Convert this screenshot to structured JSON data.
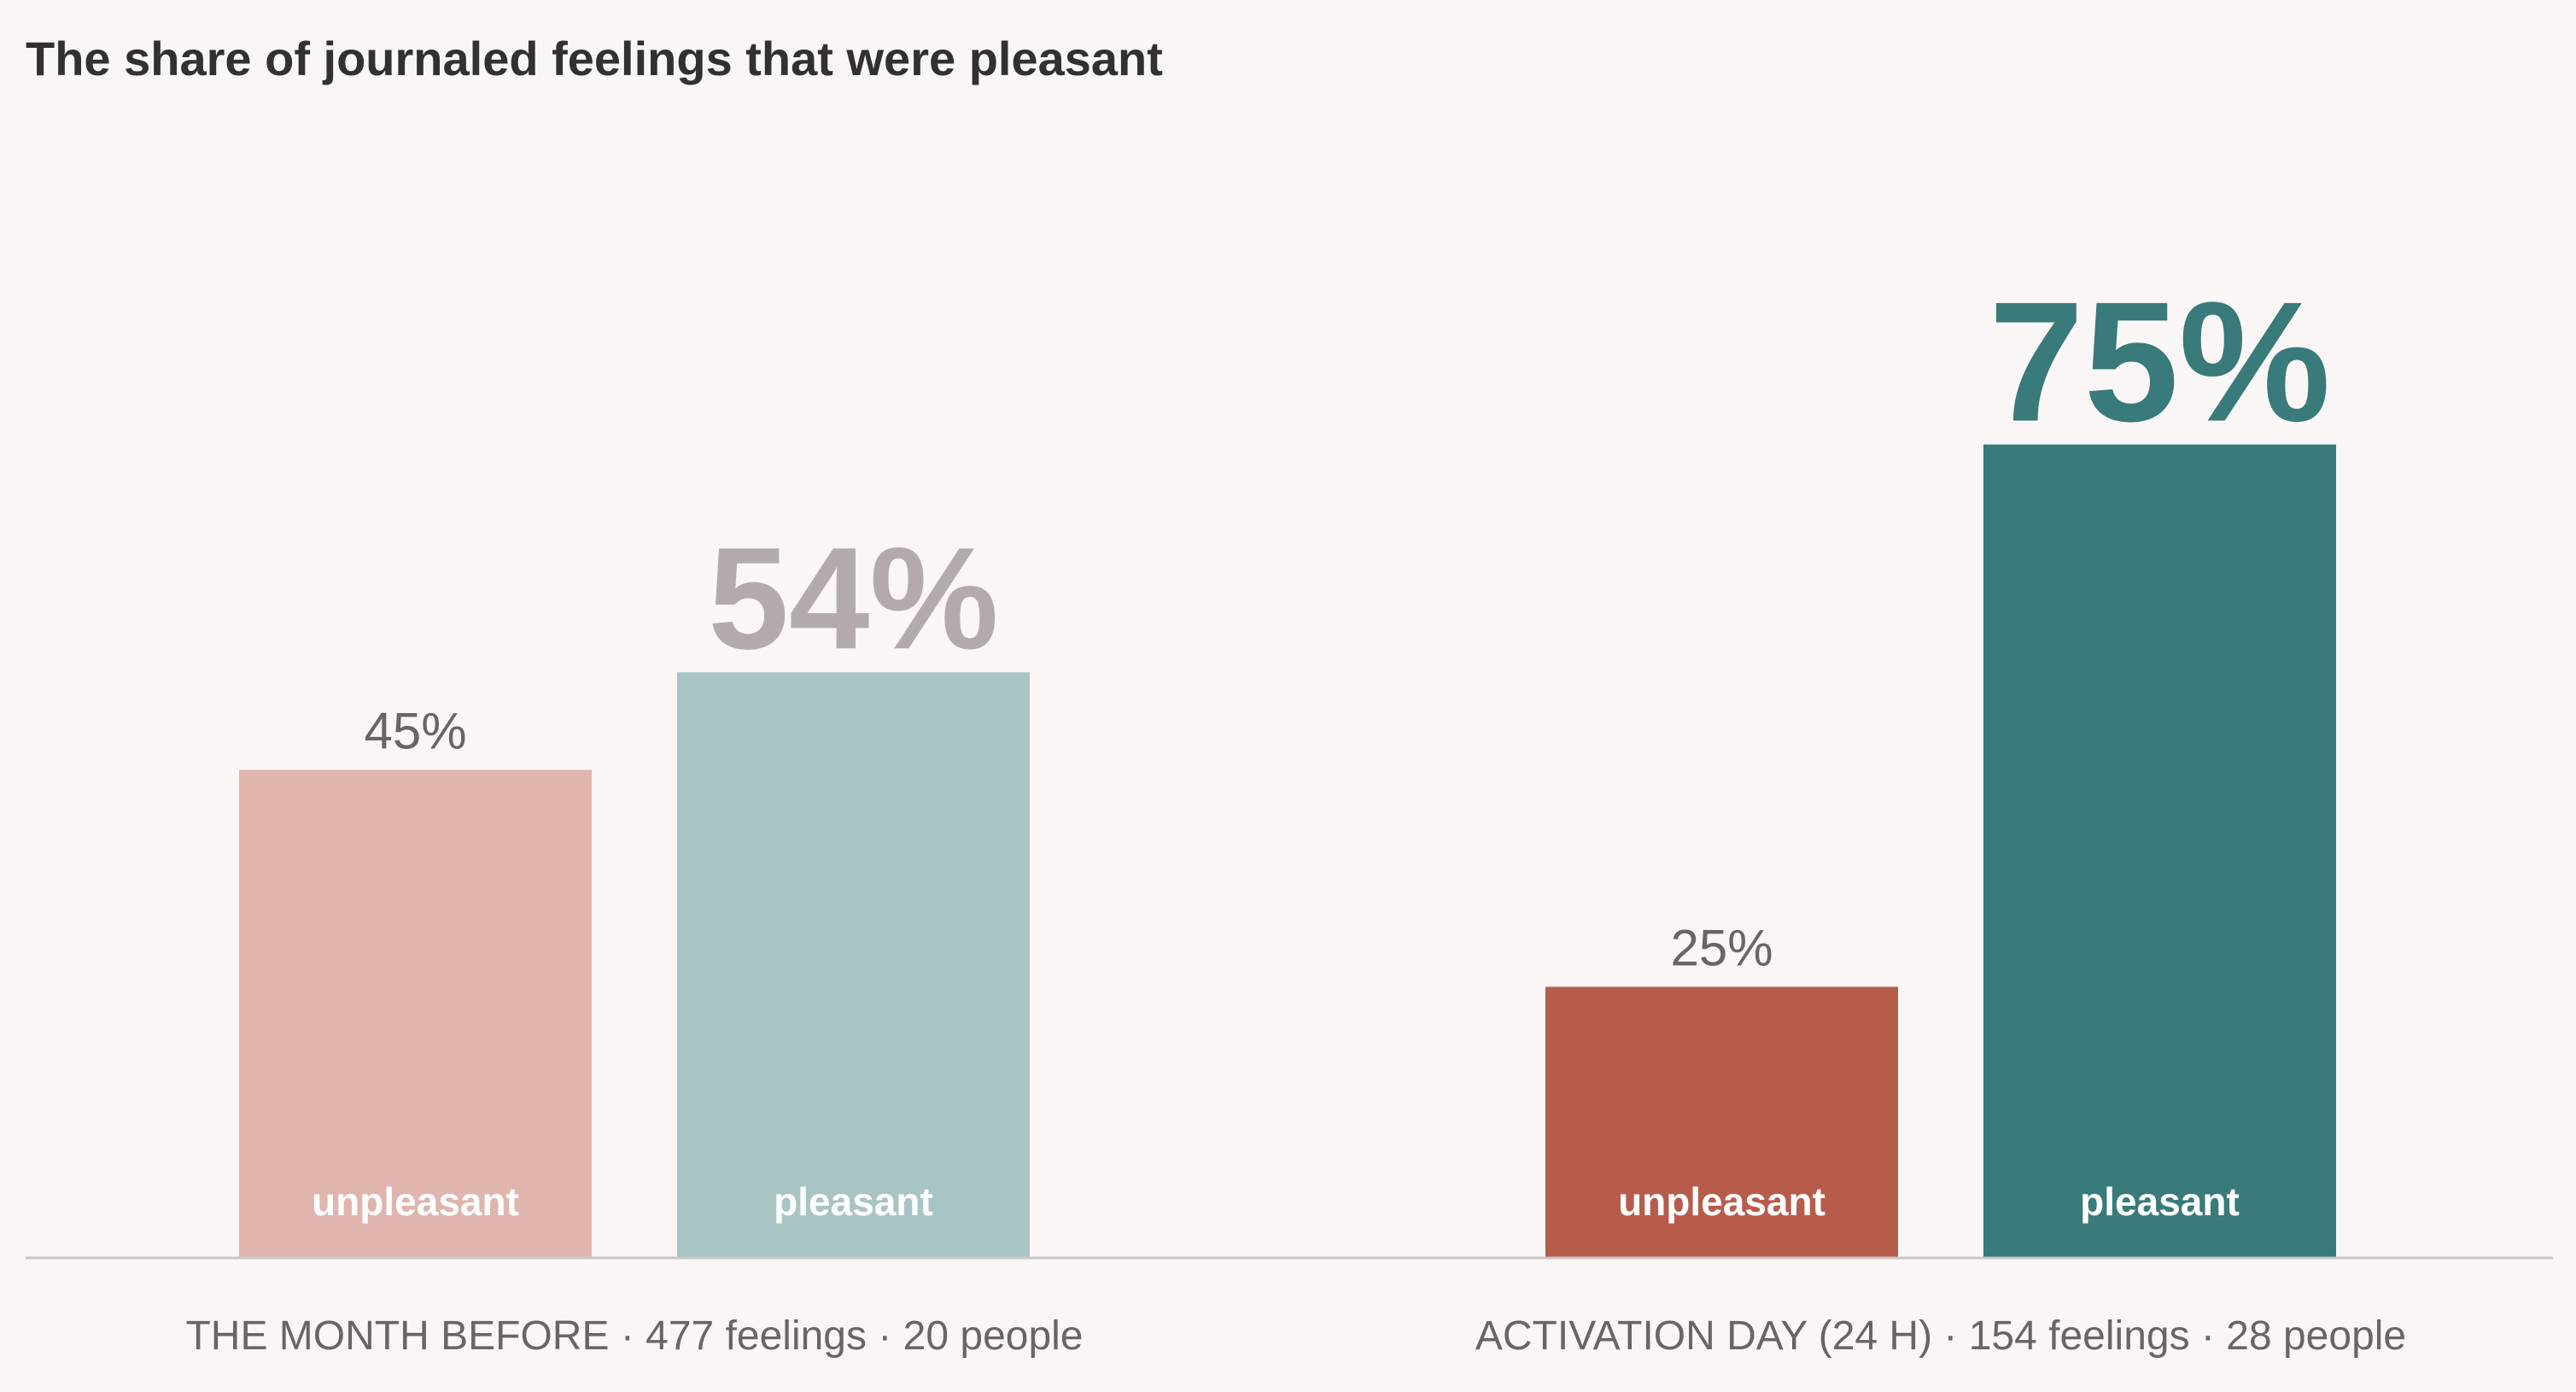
{
  "chart_data": {
    "type": "bar",
    "title": "The share of journaled feelings that were pleasant",
    "ylim": [
      0,
      100
    ],
    "grid": false,
    "legend": "none",
    "groups": [
      {
        "label": "THE MONTH BEFORE · 477 feelings · 20 people",
        "bars": [
          {
            "category": "unpleasant",
            "value": 45,
            "value_label": "45%",
            "color": "#dfb5ae",
            "emphasis": false
          },
          {
            "category": "pleasant",
            "value": 54,
            "value_label": "54%",
            "color": "#a9c4c4",
            "emphasis": true,
            "value_label_color": "#b3abab"
          }
        ]
      },
      {
        "label": "ACTIVATION DAY (24 H) · 154 feelings · 28 people",
        "bars": [
          {
            "category": "unpleasant",
            "value": 25,
            "value_label": "25%",
            "color": "#b75c4b",
            "emphasis": false
          },
          {
            "category": "pleasant",
            "value": 75,
            "value_label": "75%",
            "color": "#397a7a",
            "emphasis": true,
            "value_label_color": "#397a7a"
          }
        ]
      }
    ]
  },
  "colors": {
    "background": "#faf6f5",
    "axis": "#cbc6c6",
    "title": "#333030",
    "muted_text": "#6a6464"
  }
}
